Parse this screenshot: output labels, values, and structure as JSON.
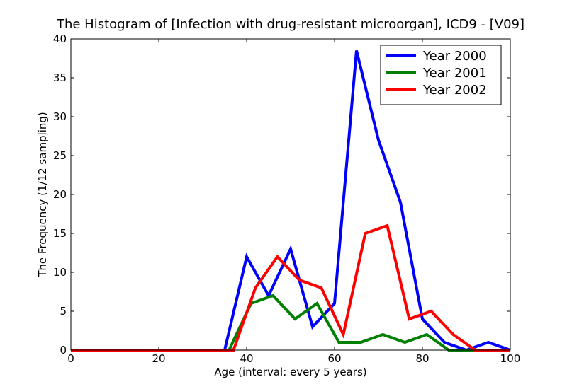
{
  "chart_data": {
    "type": "line",
    "title": "The Histogram of [Infection with drug-resistant microorgan], ICD9 - [V09]",
    "xlabel": "Age (interval: every 5 years)",
    "ylabel": "The Frequency (1/12 sampling)",
    "xlim": [
      0,
      100
    ],
    "ylim": [
      0,
      40
    ],
    "xticks": [
      0,
      20,
      40,
      60,
      80,
      100
    ],
    "yticks": [
      0,
      5,
      10,
      15,
      20,
      25,
      30,
      35,
      40
    ],
    "grid": false,
    "legend_position": "top-right",
    "series": [
      {
        "name": "Year 2000",
        "color": "#0000ff",
        "points": [
          [
            0,
            0
          ],
          [
            35,
            0
          ],
          [
            40,
            12
          ],
          [
            45,
            7
          ],
          [
            50,
            13
          ],
          [
            55,
            3
          ],
          [
            60,
            6
          ],
          [
            65,
            38.5
          ],
          [
            70,
            27
          ],
          [
            75,
            19
          ],
          [
            80,
            4
          ],
          [
            85,
            1
          ],
          [
            90,
            0
          ],
          [
            95,
            1
          ],
          [
            100,
            0
          ]
        ]
      },
      {
        "name": "Year 2001",
        "color": "#008000",
        "points": [
          [
            0,
            0
          ],
          [
            36,
            0
          ],
          [
            41,
            6
          ],
          [
            46,
            7
          ],
          [
            51,
            4
          ],
          [
            56,
            6
          ],
          [
            61,
            1
          ],
          [
            66,
            1
          ],
          [
            71,
            2
          ],
          [
            76,
            1
          ],
          [
            81,
            2
          ],
          [
            86,
            0
          ],
          [
            100,
            0
          ]
        ]
      },
      {
        "name": "Year 2002",
        "color": "#ff0000",
        "points": [
          [
            0,
            0
          ],
          [
            37,
            0
          ],
          [
            42,
            8
          ],
          [
            47,
            12
          ],
          [
            52,
            9
          ],
          [
            57,
            8
          ],
          [
            62,
            2
          ],
          [
            67,
            15
          ],
          [
            72,
            16
          ],
          [
            77,
            4
          ],
          [
            82,
            5
          ],
          [
            87,
            2
          ],
          [
            92,
            0
          ],
          [
            100,
            0
          ]
        ]
      }
    ]
  }
}
